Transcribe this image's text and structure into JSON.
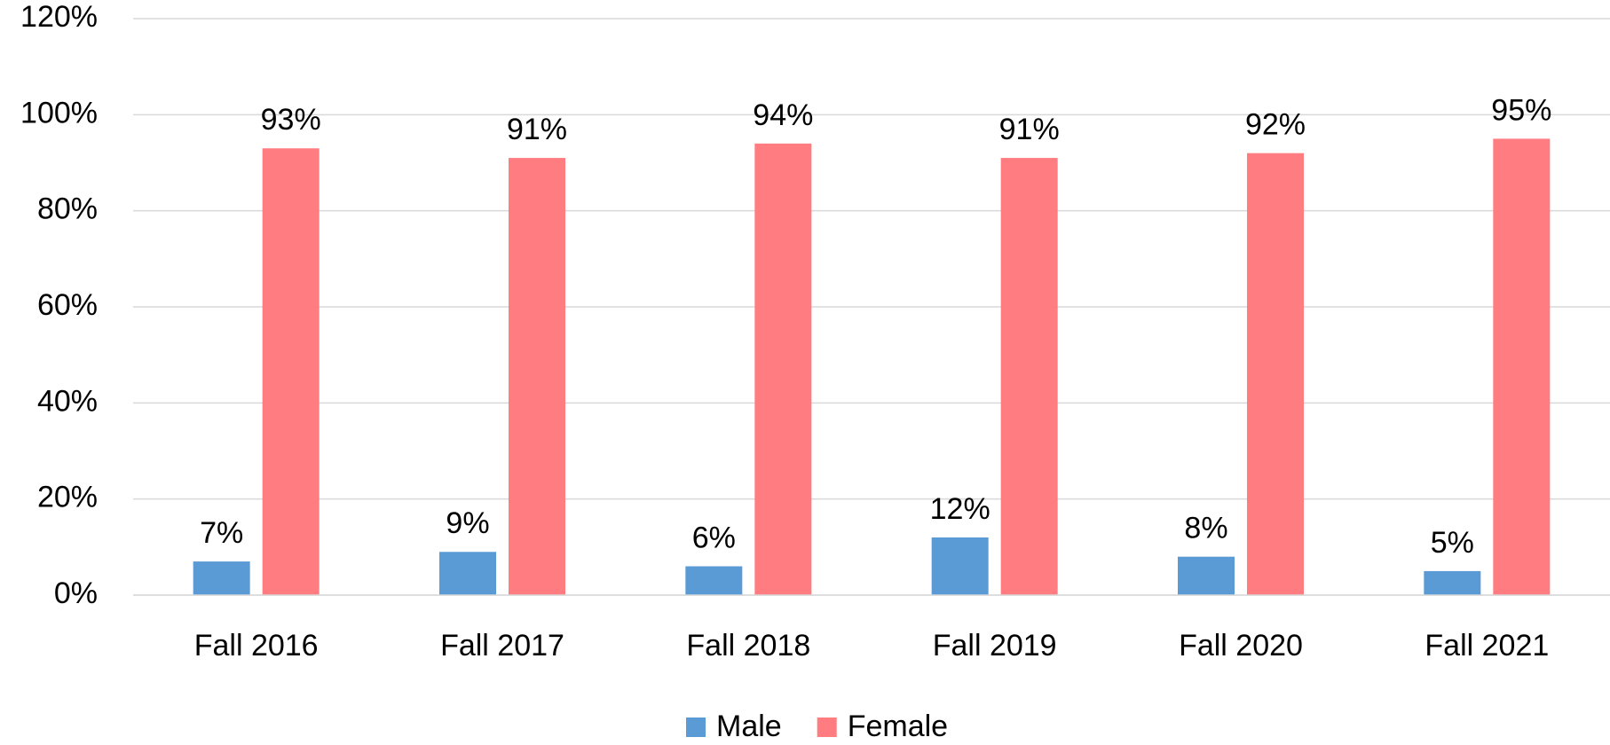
{
  "chart_data": {
    "type": "bar",
    "categories": [
      "Fall 2016",
      "Fall 2017",
      "Fall 2018",
      "Fall 2019",
      "Fall 2020",
      "Fall 2021"
    ],
    "series": [
      {
        "name": "Male",
        "color": "#5b9bd5",
        "values": [
          7,
          9,
          6,
          12,
          8,
          5
        ],
        "value_labels": [
          "7%",
          "9%",
          "6%",
          "12%",
          "8%",
          "5%"
        ]
      },
      {
        "name": "Female",
        "color": "#ff7c80",
        "values": [
          93,
          91,
          94,
          91,
          92,
          95
        ],
        "value_labels": [
          "93%",
          "91%",
          "94%",
          "91%",
          "92%",
          "95%"
        ]
      }
    ],
    "ylim": [
      0,
      120
    ],
    "yticks": [
      {
        "value": 0,
        "label": "0%"
      },
      {
        "value": 20,
        "label": "20%"
      },
      {
        "value": 40,
        "label": "40%"
      },
      {
        "value": 60,
        "label": "60%"
      },
      {
        "value": 80,
        "label": "80%"
      },
      {
        "value": 100,
        "label": "100%"
      },
      {
        "value": 120,
        "label": "120%"
      }
    ],
    "grid": true,
    "legend": "bottom"
  }
}
